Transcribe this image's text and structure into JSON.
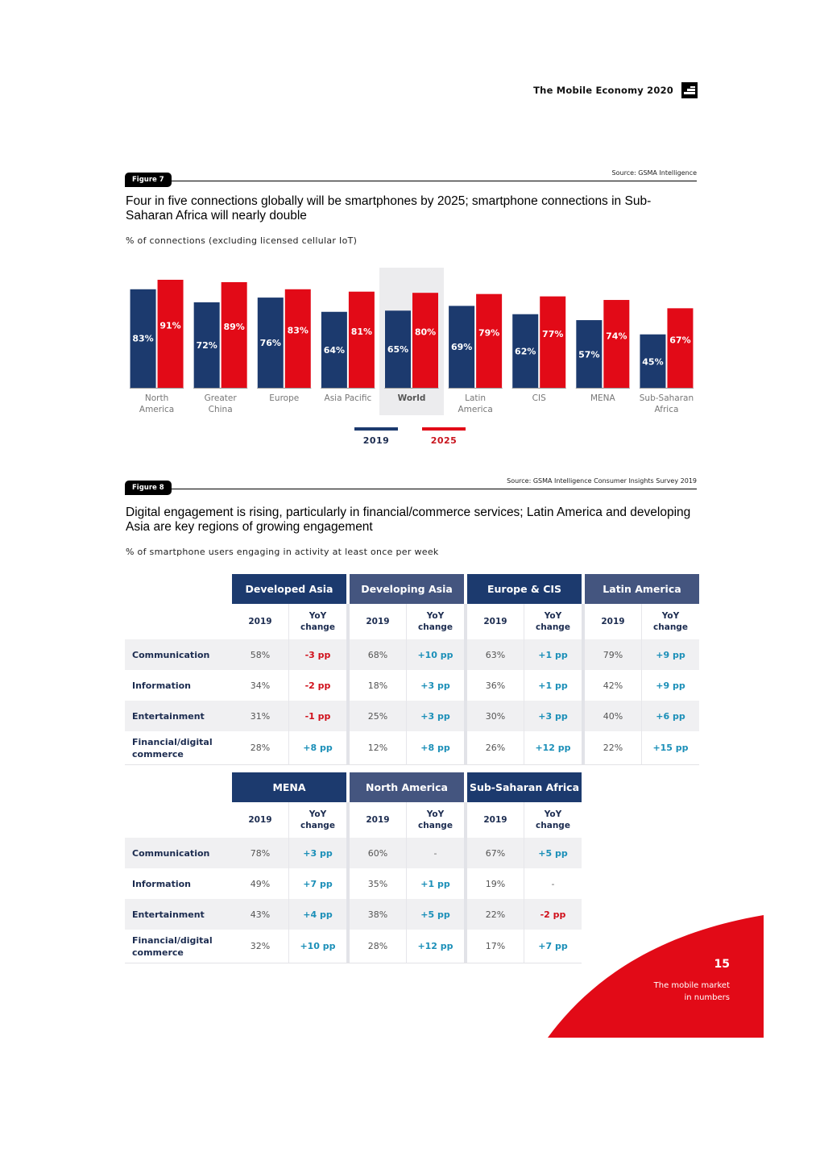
{
  "header": {
    "title": "The Mobile Economy 2020",
    "logo_icon": "gsma-logo-icon"
  },
  "figure7": {
    "badge": "Figure 7",
    "source": "Source: GSMA Intelligence",
    "title": "Four in five connections globally will be smartphones by 2025; smartphone connections in Sub-Saharan Africa will nearly double",
    "subtitle": "% of connections (excluding licensed cellular IoT)"
  },
  "chart_data": {
    "type": "bar",
    "title": "Four in five connections globally will be smartphones by 2025; smartphone connections in Sub-Saharan Africa will nearly double",
    "ylabel": "% of connections (excluding licensed cellular IoT)",
    "xlabel": "",
    "ylim": [
      0,
      100
    ],
    "grid": false,
    "legend_position": "bottom-center",
    "highlight_category": "World",
    "categories": [
      "North America",
      "Greater China",
      "Europe",
      "Asia Pacific",
      "World",
      "Latin America",
      "CIS",
      "MENA",
      "Sub-Saharan Africa"
    ],
    "category_lines": [
      [
        "North",
        "America"
      ],
      [
        "Greater",
        "China"
      ],
      [
        "Europe"
      ],
      [
        "Asia Pacific"
      ],
      [
        "World"
      ],
      [
        "Latin",
        "America"
      ],
      [
        "CIS"
      ],
      [
        "MENA"
      ],
      [
        "Sub-Saharan",
        "Africa"
      ]
    ],
    "series": [
      {
        "name": "2019",
        "color": "#1c3a6e",
        "values": [
          83,
          72,
          76,
          64,
          65,
          69,
          62,
          57,
          45
        ],
        "labels": [
          "83%",
          "72%",
          "76%",
          "64%",
          "65%",
          "69%",
          "62%",
          "57%",
          "45%"
        ]
      },
      {
        "name": "2025",
        "color": "#e20a17",
        "values": [
          91,
          89,
          83,
          81,
          80,
          79,
          77,
          74,
          67
        ],
        "labels": [
          "91%",
          "89%",
          "83%",
          "81%",
          "80%",
          "79%",
          "77%",
          "74%",
          "67%"
        ]
      }
    ]
  },
  "legend": [
    {
      "label": "2019",
      "color": "#1c3a6e",
      "text_color": "#1c2c50"
    },
    {
      "label": "2025",
      "color": "#e20a17",
      "text_color": "#c8141e"
    }
  ],
  "figure8": {
    "badge": "Figure 8",
    "source": "Source: GSMA Intelligence Consumer Insights Survey 2019",
    "title": "Digital engagement is rising, particularly in financial/commerce services; Latin America and developing Asia are key regions of growing engagement",
    "subtitle": "% of smartphone users engaging in activity at least once per week",
    "sub_headers": {
      "year": "2019",
      "change_line1": "YoY",
      "change_line2": "change"
    },
    "row_labels": [
      "Communication",
      "Information",
      "Entertainment",
      "Financial/digital commerce"
    ],
    "row_label_lines": [
      [
        "Communication"
      ],
      [
        "Information"
      ],
      [
        "Entertainment"
      ],
      [
        "Financial/digital",
        "commerce"
      ]
    ],
    "table1": {
      "regions": [
        {
          "name": "Developed Asia",
          "color": "#1c3a6e",
          "values": [
            "58%",
            "34%",
            "31%",
            "28%"
          ],
          "changes": [
            "-3 pp",
            "-2 pp",
            "-1 pp",
            "+8 pp"
          ]
        },
        {
          "name": "Developing Asia",
          "color": "#44557f",
          "values": [
            "68%",
            "18%",
            "25%",
            "12%"
          ],
          "changes": [
            "+10 pp",
            "+3 pp",
            "+3 pp",
            "+8 pp"
          ]
        },
        {
          "name": "Europe & CIS",
          "color": "#1c3a6e",
          "values": [
            "63%",
            "36%",
            "30%",
            "26%"
          ],
          "changes": [
            "+1 pp",
            "+1 pp",
            "+3 pp",
            "+12 pp"
          ]
        },
        {
          "name": "Latin America",
          "color": "#44557f",
          "values": [
            "79%",
            "42%",
            "40%",
            "22%"
          ],
          "changes": [
            "+9 pp",
            "+9 pp",
            "+6 pp",
            "+15 pp"
          ]
        }
      ]
    },
    "table2": {
      "regions": [
        {
          "name": "MENA",
          "color": "#1c3a6e",
          "values": [
            "78%",
            "49%",
            "43%",
            "32%"
          ],
          "changes": [
            "+3 pp",
            "+7 pp",
            "+4 pp",
            "+10 pp"
          ]
        },
        {
          "name": "North America",
          "color": "#44557f",
          "values": [
            "60%",
            "35%",
            "38%",
            "28%"
          ],
          "changes": [
            "-",
            "+1 pp",
            "+5 pp",
            "+12 pp"
          ]
        },
        {
          "name": "Sub-Saharan Africa",
          "color": "#1c3a6e",
          "values": [
            "67%",
            "19%",
            "22%",
            "17%"
          ],
          "changes": [
            "+5 pp",
            "-",
            "-2 pp",
            "+7 pp"
          ]
        }
      ]
    }
  },
  "footer": {
    "page_number": "15",
    "section_line1": "The mobile market",
    "section_line2": "in numbers",
    "accent_color": "#e20a17"
  }
}
